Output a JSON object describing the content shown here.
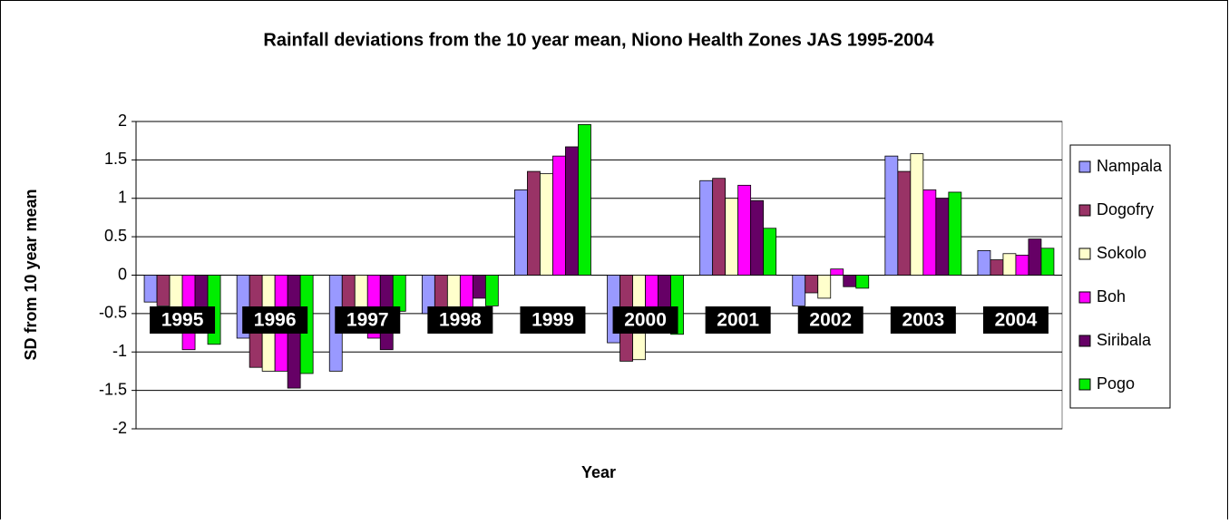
{
  "chart_data": {
    "type": "bar",
    "title": "Rainfall deviations from the 10 year mean,  Niono Health Zones JAS 1995-2004",
    "x_label": "Year",
    "y_label": "SD from 10 year mean",
    "categories": [
      "1995",
      "1996",
      "1997",
      "1998",
      "1999",
      "2000",
      "2001",
      "2002",
      "2003",
      "2004"
    ],
    "series": [
      {
        "name": "Nampala",
        "color": "#9999ff",
        "values": [
          -0.35,
          -0.82,
          -1.25,
          -0.5,
          1.11,
          -0.88,
          1.23,
          -0.4,
          1.55,
          0.32
        ]
      },
      {
        "name": "Dogofry",
        "color": "#993366",
        "values": [
          -0.4,
          -1.2,
          -0.6,
          -0.5,
          1.35,
          -1.12,
          1.26,
          -0.23,
          1.35,
          0.2
        ]
      },
      {
        "name": "Sokolo",
        "color": "#ffffcc",
        "values": [
          -0.45,
          -1.25,
          -0.5,
          -0.45,
          1.32,
          -1.1,
          1.0,
          -0.3,
          1.58,
          0.28
        ]
      },
      {
        "name": "Boh",
        "color": "#ff00ff",
        "values": [
          -0.97,
          -1.25,
          -0.82,
          -0.45,
          1.55,
          -0.75,
          1.17,
          0.08,
          1.11,
          0.26
        ]
      },
      {
        "name": "Siribala",
        "color": "#660066",
        "values": [
          -0.6,
          -1.47,
          -0.97,
          -0.3,
          1.67,
          -0.75,
          0.97,
          -0.15,
          1.0,
          0.47
        ]
      },
      {
        "name": "Pogo",
        "color": "#00ee00",
        "values": [
          -0.9,
          -1.28,
          -0.47,
          -0.4,
          1.96,
          -0.77,
          0.61,
          -0.17,
          1.08,
          0.35
        ]
      }
    ],
    "ylim": [
      -2,
      2
    ],
    "yticks": [
      2,
      1.5,
      1,
      0.5,
      0,
      -0.5,
      -1,
      -1.5,
      -2
    ],
    "grid": true,
    "legend": "right"
  }
}
